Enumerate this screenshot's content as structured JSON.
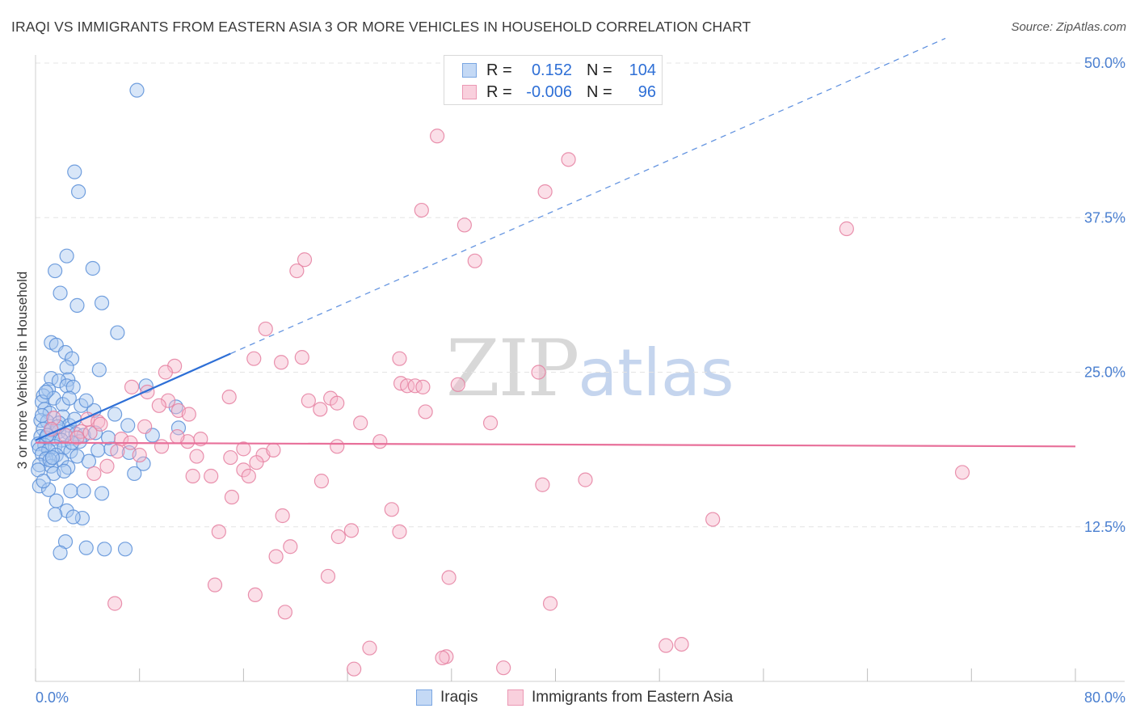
{
  "header": {
    "title": "IRAQI VS IMMIGRANTS FROM EASTERN ASIA 3 OR MORE VEHICLES IN HOUSEHOLD CORRELATION CHART",
    "source": "Source: ZipAtlas.com"
  },
  "watermark": {
    "zip": "ZIP",
    "atlas": "atlas"
  },
  "legend": {
    "rows": [
      {
        "r_label": "R =",
        "r_value": "0.152",
        "n_label": "N =",
        "n_value": "104"
      },
      {
        "r_label": "R =",
        "r_value": "-0.006",
        "n_label": "N =",
        "n_value": "96"
      }
    ]
  },
  "colors": {
    "iraqis_fill": "#a9c8f0",
    "iraqis_stroke": "#5a8fd8",
    "iraqis_line": "#2e6fd6",
    "eastasia_fill": "#f6b8cb",
    "eastasia_stroke": "#e57fa0",
    "eastasia_line": "#e8709a",
    "tick_color": "#4a7fd0",
    "grid": "#e4e4e4"
  },
  "chart_data": {
    "type": "scatter",
    "title": "IRAQI VS IMMIGRANTS FROM EASTERN ASIA 3 OR MORE VEHICLES IN HOUSEHOLD CORRELATION CHART",
    "xlabel": "",
    "ylabel": "3 or more Vehicles in Household",
    "xlim": [
      0,
      80
    ],
    "ylim": [
      0,
      50
    ],
    "x_tick_labels": [
      "0.0%",
      "80.0%"
    ],
    "y_ticks": [
      12.5,
      25.0,
      37.5,
      50.0
    ],
    "y_tick_labels": [
      "12.5%",
      "25.0%",
      "37.5%",
      "50.0%"
    ],
    "legend_placement": "bottom",
    "series": [
      {
        "name": "Iraqis",
        "r": 0.152,
        "n": 104,
        "trend": {
          "solid": [
            [
              0,
              19.5
            ],
            [
              15,
              26.5
            ]
          ],
          "dashed": [
            [
              15,
              26.5
            ],
            [
              70,
              52
            ]
          ]
        },
        "points": [
          [
            7.8,
            47.8
          ],
          [
            3.0,
            41.2
          ],
          [
            3.3,
            39.6
          ],
          [
            2.4,
            34.4
          ],
          [
            4.4,
            33.4
          ],
          [
            1.5,
            33.2
          ],
          [
            1.9,
            31.4
          ],
          [
            3.2,
            30.4
          ],
          [
            5.1,
            30.6
          ],
          [
            6.3,
            28.2
          ],
          [
            1.2,
            27.4
          ],
          [
            1.6,
            27.2
          ],
          [
            2.3,
            26.6
          ],
          [
            2.8,
            26.1
          ],
          [
            2.4,
            25.4
          ],
          [
            4.9,
            25.2
          ],
          [
            1.2,
            24.5
          ],
          [
            2.5,
            24.4
          ],
          [
            1.8,
            24.3
          ],
          [
            2.4,
            23.9
          ],
          [
            2.9,
            23.8
          ],
          [
            8.5,
            23.9
          ],
          [
            1.0,
            23.6
          ],
          [
            0.6,
            23.1
          ],
          [
            1.4,
            22.9
          ],
          [
            0.5,
            22.6
          ],
          [
            2.1,
            22.4
          ],
          [
            3.5,
            22.3
          ],
          [
            0.7,
            22.0
          ],
          [
            4.5,
            21.9
          ],
          [
            10.8,
            22.2
          ],
          [
            1.1,
            21.7
          ],
          [
            2.1,
            21.4
          ],
          [
            0.4,
            21.1
          ],
          [
            0.9,
            21.0
          ],
          [
            1.8,
            20.9
          ],
          [
            2.6,
            20.7
          ],
          [
            7.1,
            20.7
          ],
          [
            11.0,
            20.5
          ],
          [
            0.6,
            20.4
          ],
          [
            1.2,
            20.3
          ],
          [
            1.8,
            20.2
          ],
          [
            2.5,
            20.1
          ],
          [
            3.1,
            20.0
          ],
          [
            3.7,
            19.9
          ],
          [
            0.4,
            19.8
          ],
          [
            0.8,
            19.7
          ],
          [
            1.3,
            19.6
          ],
          [
            2.0,
            19.5
          ],
          [
            3.4,
            19.4
          ],
          [
            0.2,
            19.2
          ],
          [
            0.7,
            19.1
          ],
          [
            1.5,
            19.0
          ],
          [
            2.2,
            18.9
          ],
          [
            0.3,
            18.8
          ],
          [
            1.0,
            18.7
          ],
          [
            2.7,
            18.6
          ],
          [
            4.8,
            18.7
          ],
          [
            5.8,
            18.8
          ],
          [
            0.5,
            18.4
          ],
          [
            1.6,
            18.3
          ],
          [
            3.2,
            18.2
          ],
          [
            7.2,
            18.5
          ],
          [
            0.8,
            18.0
          ],
          [
            2.0,
            17.9
          ],
          [
            4.1,
            17.8
          ],
          [
            8.3,
            17.6
          ],
          [
            0.3,
            17.5
          ],
          [
            1.2,
            17.4
          ],
          [
            2.5,
            17.3
          ],
          [
            0.2,
            17.1
          ],
          [
            1.4,
            16.8
          ],
          [
            7.6,
            16.8
          ],
          [
            0.3,
            15.8
          ],
          [
            1.0,
            15.5
          ],
          [
            2.7,
            15.4
          ],
          [
            3.7,
            15.4
          ],
          [
            5.1,
            15.2
          ],
          [
            1.6,
            14.6
          ],
          [
            2.4,
            13.8
          ],
          [
            3.6,
            13.2
          ],
          [
            1.5,
            13.5
          ],
          [
            2.9,
            13.3
          ],
          [
            2.3,
            11.3
          ],
          [
            3.9,
            10.8
          ],
          [
            5.3,
            10.7
          ],
          [
            6.9,
            10.7
          ],
          [
            1.9,
            10.4
          ],
          [
            5.6,
            19.7
          ],
          [
            9.0,
            19.9
          ],
          [
            3.0,
            21.2
          ],
          [
            0.9,
            19.9
          ],
          [
            1.7,
            20.6
          ],
          [
            2.8,
            19.3
          ],
          [
            0.6,
            16.2
          ],
          [
            1.1,
            17.9
          ],
          [
            3.9,
            22.7
          ],
          [
            0.5,
            21.5
          ],
          [
            2.2,
            17.0
          ],
          [
            4.6,
            20.1
          ],
          [
            6.1,
            21.6
          ],
          [
            1.3,
            18.1
          ],
          [
            2.6,
            22.9
          ],
          [
            0.8,
            23.4
          ]
        ]
      },
      {
        "name": "Immigrants from Eastern Asia",
        "r": -0.006,
        "n": 96,
        "trend": {
          "solid": [
            [
              0,
              19.3
            ],
            [
              80,
              19.0
            ]
          ]
        },
        "points": [
          [
            30.9,
            44.1
          ],
          [
            41.0,
            42.2
          ],
          [
            39.2,
            39.6
          ],
          [
            29.7,
            38.1
          ],
          [
            33.0,
            36.9
          ],
          [
            62.4,
            36.6
          ],
          [
            33.8,
            34.0
          ],
          [
            20.7,
            34.1
          ],
          [
            20.1,
            33.2
          ],
          [
            17.7,
            28.5
          ],
          [
            16.8,
            26.1
          ],
          [
            20.5,
            26.2
          ],
          [
            18.9,
            25.8
          ],
          [
            28.0,
            26.1
          ],
          [
            10.7,
            25.5
          ],
          [
            38.7,
            25.0
          ],
          [
            10.0,
            25.0
          ],
          [
            28.1,
            24.1
          ],
          [
            28.6,
            23.9
          ],
          [
            32.5,
            24.0
          ],
          [
            29.2,
            23.9
          ],
          [
            29.8,
            23.8
          ],
          [
            7.4,
            23.8
          ],
          [
            8.6,
            23.4
          ],
          [
            14.9,
            23.0
          ],
          [
            21.0,
            22.7
          ],
          [
            22.7,
            22.9
          ],
          [
            10.2,
            22.7
          ],
          [
            23.2,
            22.5
          ],
          [
            21.9,
            22.0
          ],
          [
            11.0,
            21.9
          ],
          [
            11.8,
            21.6
          ],
          [
            30.0,
            21.8
          ],
          [
            1.4,
            21.3
          ],
          [
            4.0,
            21.2
          ],
          [
            4.8,
            21.0
          ],
          [
            5.0,
            20.8
          ],
          [
            25.0,
            20.9
          ],
          [
            35.0,
            20.9
          ],
          [
            8.4,
            20.6
          ],
          [
            1.2,
            20.4
          ],
          [
            3.5,
            20.2
          ],
          [
            4.2,
            20.1
          ],
          [
            2.3,
            19.9
          ],
          [
            3.2,
            19.7
          ],
          [
            12.7,
            19.6
          ],
          [
            11.7,
            19.4
          ],
          [
            6.6,
            19.6
          ],
          [
            7.3,
            19.3
          ],
          [
            26.5,
            19.4
          ],
          [
            9.7,
            19.0
          ],
          [
            23.2,
            19.0
          ],
          [
            16.0,
            18.8
          ],
          [
            6.3,
            18.6
          ],
          [
            8.0,
            18.3
          ],
          [
            12.4,
            18.2
          ],
          [
            15.0,
            18.1
          ],
          [
            17.5,
            18.3
          ],
          [
            18.3,
            18.7
          ],
          [
            17.0,
            17.7
          ],
          [
            5.5,
            17.4
          ],
          [
            16.0,
            17.1
          ],
          [
            4.5,
            16.8
          ],
          [
            12.1,
            16.6
          ],
          [
            16.4,
            16.6
          ],
          [
            13.5,
            16.6
          ],
          [
            22.0,
            16.2
          ],
          [
            42.3,
            16.3
          ],
          [
            39.0,
            15.9
          ],
          [
            71.3,
            16.9
          ],
          [
            15.1,
            14.9
          ],
          [
            27.4,
            13.9
          ],
          [
            19.0,
            13.4
          ],
          [
            52.1,
            13.1
          ],
          [
            24.3,
            12.2
          ],
          [
            23.3,
            11.7
          ],
          [
            28.0,
            12.1
          ],
          [
            14.1,
            12.1
          ],
          [
            19.6,
            10.9
          ],
          [
            18.5,
            10.1
          ],
          [
            22.5,
            8.5
          ],
          [
            31.8,
            8.4
          ],
          [
            13.8,
            7.8
          ],
          [
            16.9,
            7.0
          ],
          [
            39.6,
            6.3
          ],
          [
            6.1,
            6.3
          ],
          [
            19.2,
            5.6
          ],
          [
            25.7,
            2.7
          ],
          [
            48.5,
            2.9
          ],
          [
            49.7,
            3.0
          ],
          [
            31.6,
            2.0
          ],
          [
            31.3,
            1.9
          ],
          [
            24.5,
            1.0
          ],
          [
            36.0,
            1.1
          ],
          [
            9.5,
            22.3
          ],
          [
            10.9,
            19.8
          ]
        ]
      }
    ]
  }
}
